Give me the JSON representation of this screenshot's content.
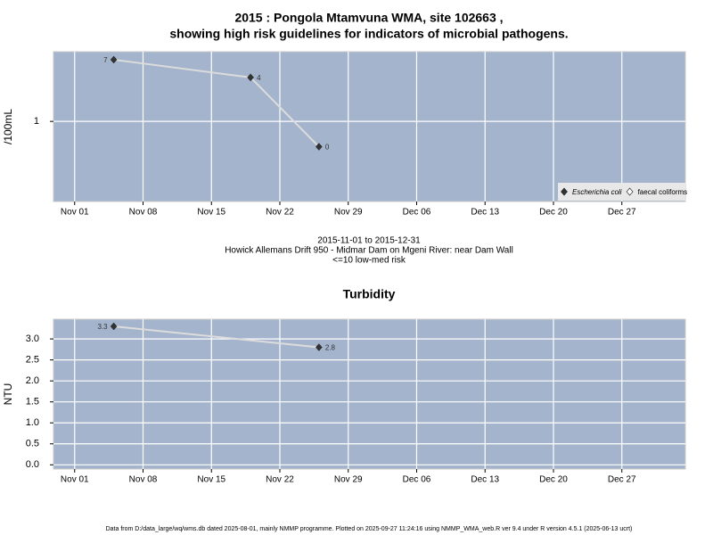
{
  "chart_data": [
    {
      "type": "line",
      "title": "2015 : Pongola Mtamvuna WMA, site 102663 ,",
      "subtitle": "showing high risk guidelines for indicators of microbial pathogens.",
      "ylabel": "/100mL",
      "x": [
        "2015-11-05",
        "2015-11-19",
        "2015-11-26"
      ],
      "series": [
        {
          "name": "Escherichia coli",
          "color": "#333333",
          "values": [
            7,
            4,
            0.45
          ],
          "value_labels": [
            "7",
            "4",
            "0"
          ]
        },
        {
          "name": "faecal coliforms",
          "color": "#ffffff",
          "values": [
            null,
            null,
            null
          ]
        }
      ],
      "line_color": "#dcdcdc",
      "ylog": true,
      "ylim": [
        0.08,
        9
      ],
      "yticks": [
        1
      ],
      "xlim": [
        "2015-10-29T20:00",
        "2016-01-02T12:00"
      ],
      "xticks": [
        {
          "value": "2015-11-01",
          "label": "Nov 01"
        },
        {
          "value": "2015-11-08",
          "label": "Nov 08"
        },
        {
          "value": "2015-11-15",
          "label": "Nov 15"
        },
        {
          "value": "2015-11-22",
          "label": "Nov 22"
        },
        {
          "value": "2015-11-29",
          "label": "Nov 29"
        },
        {
          "value": "2015-12-06",
          "label": "Dec 06"
        },
        {
          "value": "2015-12-13",
          "label": "Dec 13"
        },
        {
          "value": "2015-12-20",
          "label": "Dec 20"
        },
        {
          "value": "2015-12-27",
          "label": "Dec 27"
        }
      ],
      "grid": true,
      "legend": "bottom-right",
      "caption": [
        "2015-11-01 to 2015-12-31",
        "Howick Allemans Drift 950 - Midmar Dam on Mgeni River: near Dam Wall",
        "<=10 low-med risk"
      ]
    },
    {
      "type": "line",
      "title": "Turbidity",
      "ylabel": "NTU",
      "x": [
        "2015-11-05",
        "2015-11-26"
      ],
      "series": [
        {
          "name": "Turbidity",
          "color": "#333333",
          "values": [
            3.3,
            2.8
          ]
        }
      ],
      "line_color": "#dcdcdc",
      "ylog": false,
      "ylim": [
        -0.1,
        3.47
      ],
      "yticks": [
        {
          "value": 0,
          "label": "0.0"
        },
        0.5,
        {
          "value": 1,
          "label": "1.0"
        },
        1.5,
        {
          "value": 2,
          "label": "2.0"
        },
        2.5,
        {
          "value": 3,
          "label": "3.0"
        }
      ],
      "xlim": [
        "2015-10-29T20:00",
        "2016-01-02T12:00"
      ],
      "xticks": [
        {
          "value": "2015-11-01",
          "label": "Nov 01"
        },
        {
          "value": "2015-11-08",
          "label": "Nov 08"
        },
        {
          "value": "2015-11-15",
          "label": "Nov 15"
        },
        {
          "value": "2015-11-22",
          "label": "Nov 22"
        },
        {
          "value": "2015-11-29",
          "label": "Nov 29"
        },
        {
          "value": "2015-12-06",
          "label": "Dec 06"
        },
        {
          "value": "2015-12-13",
          "label": "Dec 13"
        },
        {
          "value": "2015-12-20",
          "label": "Dec 20"
        },
        {
          "value": "2015-12-27",
          "label": "Dec 27"
        }
      ],
      "grid": true
    }
  ],
  "footer": "Data from D:/data_large/wq/wms.db dated 2025-08-01, mainly NMMP programme. Plotted on 2025-09-27 11:24:16 using NMMP_WMA_web.R ver 9.4 under R version 4.5.1 (2025-06-13 ucrt)"
}
